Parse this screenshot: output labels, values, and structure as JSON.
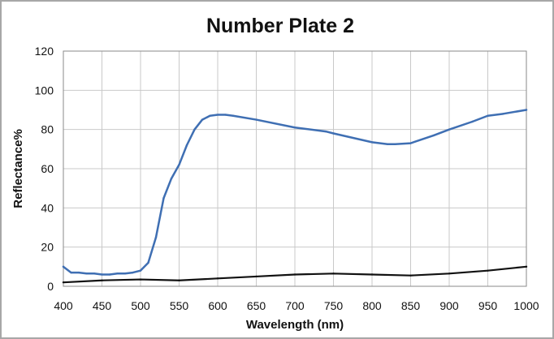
{
  "chart_data": {
    "type": "line",
    "title": "Number Plate 2",
    "xlabel": "Wavelength (nm)",
    "ylabel": "Reflectance%",
    "xlim": [
      400,
      1000
    ],
    "ylim": [
      0,
      120
    ],
    "xticks": [
      400,
      450,
      500,
      550,
      600,
      650,
      700,
      750,
      800,
      850,
      900,
      950,
      1000
    ],
    "yticks": [
      0,
      20,
      40,
      60,
      80,
      100,
      120
    ],
    "grid": true,
    "legend": "none",
    "series": [
      {
        "color": "#3f6fb3",
        "x": [
          400,
          410,
          420,
          430,
          440,
          450,
          460,
          470,
          480,
          490,
          500,
          510,
          520,
          530,
          540,
          550,
          560,
          570,
          580,
          590,
          600,
          610,
          620,
          650,
          700,
          740,
          750,
          800,
          820,
          830,
          850,
          880,
          900,
          930,
          950,
          970,
          1000
        ],
        "values": [
          10,
          7,
          7,
          6.5,
          6.5,
          6,
          6,
          6.5,
          6.5,
          7,
          8,
          12,
          25,
          45,
          55,
          62,
          72,
          80,
          85,
          87,
          87.5,
          87.5,
          87,
          85,
          81,
          79,
          78,
          73.5,
          72.5,
          72.5,
          73,
          77,
          80,
          84,
          87,
          88,
          90
        ]
      },
      {
        "color": "#111111",
        "x": [
          400,
          450,
          500,
          550,
          600,
          650,
          700,
          750,
          800,
          850,
          900,
          950,
          1000
        ],
        "values": [
          2,
          3,
          3.5,
          3,
          4,
          5,
          6,
          6.5,
          6,
          5.5,
          6.5,
          8,
          10
        ]
      }
    ]
  }
}
